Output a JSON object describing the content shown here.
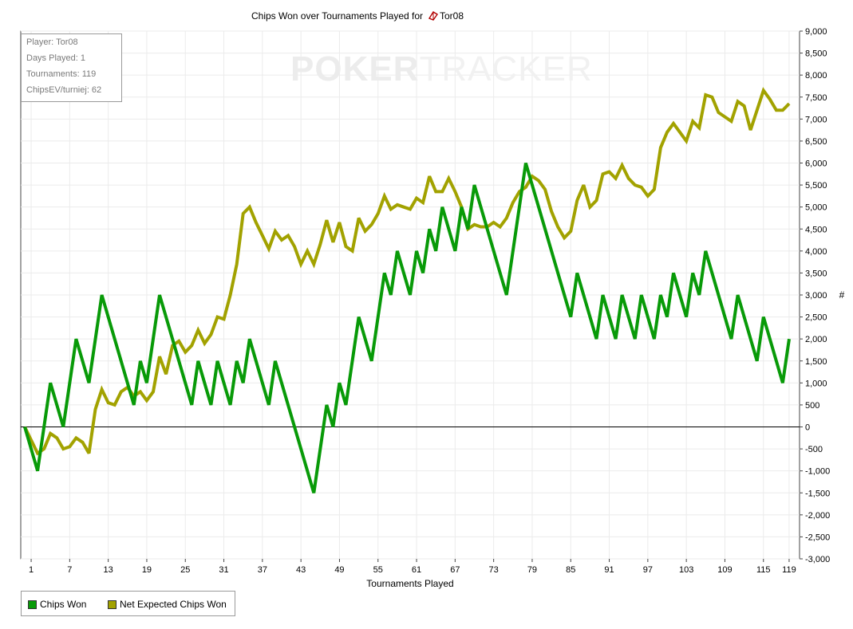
{
  "title": "Chips Won over Tournaments Played for",
  "player_suffix": "Tor08",
  "watermark": {
    "part1": "POKER",
    "part2": "TRACKER"
  },
  "info": {
    "player": "Player: Tor08",
    "days": "Days Played: 1",
    "tournaments": "Tournaments: 119",
    "chipsev": "ChipsEV/turniej: 62"
  },
  "legend": [
    {
      "label": "Chips Won",
      "color": "#089a08"
    },
    {
      "label": "Net Expected Chips Won",
      "color": "#a2a200"
    }
  ],
  "chart_data": {
    "type": "line",
    "title": "Chips Won over Tournaments Played for Tor08",
    "xlabel": "Tournaments Played",
    "ylabel": "#",
    "xlim": [
      0,
      120
    ],
    "ylim": [
      -3000,
      9000
    ],
    "x_ticks": [
      1,
      7,
      13,
      19,
      25,
      31,
      37,
      43,
      49,
      55,
      61,
      67,
      73,
      79,
      85,
      91,
      97,
      103,
      109,
      115,
      119
    ],
    "y_ticks": [
      "9,000",
      "8,500",
      "8,000",
      "7,500",
      "7,000",
      "6,500",
      "6,000",
      "5,500",
      "5,000",
      "4,500",
      "4,000",
      "3,500",
      "3,000",
      "2,500",
      "2,000",
      "1,500",
      "1,000",
      "500",
      "0",
      "-500",
      "-1,000",
      "-1,500",
      "-2,000",
      "-2,500",
      "-3,000"
    ],
    "grid": true,
    "legend_position": "bottom-left",
    "series": [
      {
        "name": "Chips Won",
        "color": "#089a08",
        "points": [
          [
            0,
            0
          ],
          [
            2,
            -1000
          ],
          [
            4,
            1000
          ],
          [
            6,
            0
          ],
          [
            8,
            2000
          ],
          [
            10,
            1000
          ],
          [
            12,
            3000
          ],
          [
            17,
            500
          ],
          [
            18,
            1500
          ],
          [
            19,
            1000
          ],
          [
            21,
            3000
          ],
          [
            26,
            500
          ],
          [
            27,
            1500
          ],
          [
            29,
            500
          ],
          [
            30,
            1500
          ],
          [
            32,
            500
          ],
          [
            33,
            1500
          ],
          [
            34,
            1000
          ],
          [
            35,
            2000
          ],
          [
            38,
            500
          ],
          [
            39,
            1500
          ],
          [
            45,
            -1500
          ],
          [
            47,
            500
          ],
          [
            48,
            0
          ],
          [
            49,
            1000
          ],
          [
            50,
            500
          ],
          [
            52,
            2500
          ],
          [
            54,
            1500
          ],
          [
            56,
            3500
          ],
          [
            57,
            3000
          ],
          [
            58,
            4000
          ],
          [
            60,
            3000
          ],
          [
            61,
            4000
          ],
          [
            62,
            3500
          ],
          [
            63,
            4500
          ],
          [
            64,
            4000
          ],
          [
            65,
            5000
          ],
          [
            67,
            4000
          ],
          [
            68,
            5000
          ],
          [
            69,
            4500
          ],
          [
            70,
            5500
          ],
          [
            75,
            3000
          ],
          [
            78,
            6000
          ],
          [
            85,
            2500
          ],
          [
            86,
            3500
          ],
          [
            89,
            2000
          ],
          [
            90,
            3000
          ],
          [
            92,
            2000
          ],
          [
            93,
            3000
          ],
          [
            95,
            2000
          ],
          [
            96,
            3000
          ],
          [
            98,
            2000
          ],
          [
            99,
            3000
          ],
          [
            100,
            2500
          ],
          [
            101,
            3500
          ],
          [
            103,
            2500
          ],
          [
            104,
            3500
          ],
          [
            105,
            3000
          ],
          [
            106,
            4000
          ],
          [
            110,
            2000
          ],
          [
            111,
            3000
          ],
          [
            114,
            1500
          ],
          [
            115,
            2500
          ],
          [
            118,
            1000
          ],
          [
            119,
            2000
          ]
        ]
      },
      {
        "name": "Net Expected Chips Won",
        "color": "#a2a200",
        "points": [
          [
            0,
            0
          ],
          [
            1,
            -300
          ],
          [
            2,
            -600
          ],
          [
            3,
            -500
          ],
          [
            4,
            -150
          ],
          [
            5,
            -250
          ],
          [
            6,
            -500
          ],
          [
            7,
            -450
          ],
          [
            8,
            -250
          ],
          [
            9,
            -350
          ],
          [
            10,
            -600
          ],
          [
            11,
            400
          ],
          [
            12,
            850
          ],
          [
            13,
            550
          ],
          [
            14,
            500
          ],
          [
            15,
            800
          ],
          [
            16,
            900
          ],
          [
            17,
            700
          ],
          [
            18,
            800
          ],
          [
            19,
            600
          ],
          [
            20,
            800
          ],
          [
            21,
            1600
          ],
          [
            22,
            1200
          ],
          [
            23,
            1850
          ],
          [
            24,
            1950
          ],
          [
            25,
            1700
          ],
          [
            26,
            1850
          ],
          [
            27,
            2200
          ],
          [
            28,
            1900
          ],
          [
            29,
            2100
          ],
          [
            30,
            2500
          ],
          [
            31,
            2450
          ],
          [
            32,
            3000
          ],
          [
            33,
            3700
          ],
          [
            34,
            4850
          ],
          [
            35,
            5000
          ],
          [
            36,
            4650
          ],
          [
            37,
            4350
          ],
          [
            38,
            4050
          ],
          [
            39,
            4450
          ],
          [
            40,
            4250
          ],
          [
            41,
            4350
          ],
          [
            42,
            4100
          ],
          [
            43,
            3700
          ],
          [
            44,
            4000
          ],
          [
            45,
            3700
          ],
          [
            46,
            4150
          ],
          [
            47,
            4700
          ],
          [
            48,
            4200
          ],
          [
            49,
            4650
          ],
          [
            50,
            4100
          ],
          [
            51,
            4000
          ],
          [
            52,
            4750
          ],
          [
            53,
            4450
          ],
          [
            54,
            4600
          ],
          [
            55,
            4850
          ],
          [
            56,
            5250
          ],
          [
            57,
            4950
          ],
          [
            58,
            5050
          ],
          [
            59,
            5000
          ],
          [
            60,
            4950
          ],
          [
            61,
            5200
          ],
          [
            62,
            5100
          ],
          [
            63,
            5700
          ],
          [
            64,
            5350
          ],
          [
            65,
            5350
          ],
          [
            66,
            5650
          ],
          [
            67,
            5350
          ],
          [
            68,
            5000
          ],
          [
            69,
            4500
          ],
          [
            70,
            4600
          ],
          [
            71,
            4550
          ],
          [
            72,
            4550
          ],
          [
            73,
            4650
          ],
          [
            74,
            4550
          ],
          [
            75,
            4750
          ],
          [
            76,
            5100
          ],
          [
            77,
            5350
          ],
          [
            78,
            5450
          ],
          [
            79,
            5700
          ],
          [
            80,
            5600
          ],
          [
            81,
            5400
          ],
          [
            82,
            4900
          ],
          [
            83,
            4550
          ],
          [
            84,
            4300
          ],
          [
            85,
            4450
          ],
          [
            86,
            5150
          ],
          [
            87,
            5500
          ],
          [
            88,
            5000
          ],
          [
            89,
            5150
          ],
          [
            90,
            5750
          ],
          [
            91,
            5800
          ],
          [
            92,
            5650
          ],
          [
            93,
            5950
          ],
          [
            94,
            5650
          ],
          [
            95,
            5500
          ],
          [
            96,
            5450
          ],
          [
            97,
            5250
          ],
          [
            98,
            5400
          ],
          [
            99,
            6350
          ],
          [
            100,
            6700
          ],
          [
            101,
            6900
          ],
          [
            102,
            6700
          ],
          [
            103,
            6500
          ],
          [
            104,
            6950
          ],
          [
            105,
            6800
          ],
          [
            106,
            7550
          ],
          [
            107,
            7500
          ],
          [
            108,
            7150
          ],
          [
            109,
            7050
          ],
          [
            110,
            6950
          ],
          [
            111,
            7400
          ],
          [
            112,
            7300
          ],
          [
            113,
            6750
          ],
          [
            114,
            7200
          ],
          [
            115,
            7650
          ],
          [
            116,
            7450
          ],
          [
            117,
            7200
          ],
          [
            118,
            7200
          ],
          [
            119,
            7350
          ]
        ]
      }
    ]
  }
}
